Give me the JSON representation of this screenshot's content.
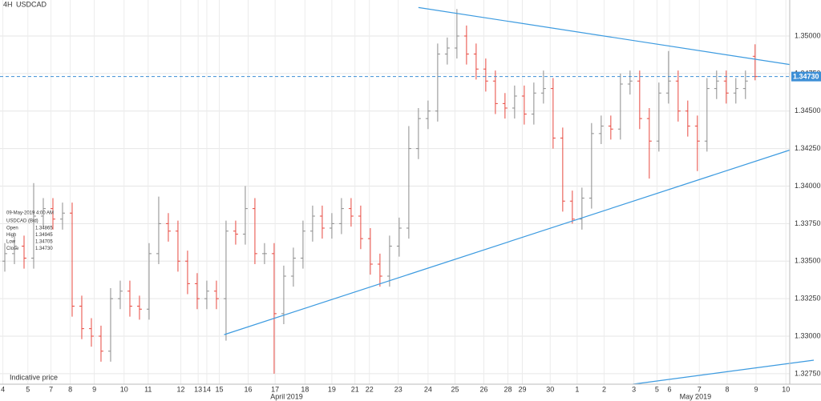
{
  "chart_data": {
    "type": "ohlc",
    "timeframe": "4H",
    "symbol": "USDCAD",
    "up_color": "#8c8c8c",
    "down_color": "#e8483f",
    "grid": true,
    "xlim": [
      0,
      82.1
    ],
    "ylim": [
      1.3268,
      1.3524
    ],
    "yticks": [
      {
        "value": 1.35,
        "label": "1.35000"
      },
      {
        "value": 1.3475,
        "label": "1.34750"
      },
      {
        "value": 1.345,
        "label": "1.34500"
      },
      {
        "value": 1.3425,
        "label": "1.34250"
      },
      {
        "value": 1.34,
        "label": "1.34000"
      },
      {
        "value": 1.3375,
        "label": "1.33750"
      },
      {
        "value": 1.335,
        "label": "1.33500"
      },
      {
        "value": 1.3325,
        "label": "1.33250"
      },
      {
        "value": 1.33,
        "label": "1.33000"
      },
      {
        "value": 1.3275,
        "label": "1.32750"
      }
    ],
    "xticks": [
      {
        "value": 0.3,
        "label": "4"
      },
      {
        "value": 2.9,
        "label": "5"
      },
      {
        "value": 5.3,
        "label": "7"
      },
      {
        "value": 7.3,
        "label": "8"
      },
      {
        "value": 9.8,
        "label": "9"
      },
      {
        "value": 12.9,
        "label": "10"
      },
      {
        "value": 15.4,
        "label": "11"
      },
      {
        "value": 18.8,
        "label": "12"
      },
      {
        "value": 20.6,
        "label": "13"
      },
      {
        "value": 21.5,
        "label": "14"
      },
      {
        "value": 22.8,
        "label": "15"
      },
      {
        "value": 25.8,
        "label": "16"
      },
      {
        "value": 28.6,
        "label": "17"
      },
      {
        "value": 31.7,
        "label": "18"
      },
      {
        "value": 34.5,
        "label": "19"
      },
      {
        "value": 36.9,
        "label": "21"
      },
      {
        "value": 38.4,
        "label": "22"
      },
      {
        "value": 41.4,
        "label": "23"
      },
      {
        "value": 44.5,
        "label": "24"
      },
      {
        "value": 47.3,
        "label": "25"
      },
      {
        "value": 50.3,
        "label": "26"
      },
      {
        "value": 52.8,
        "label": "28"
      },
      {
        "value": 54.3,
        "label": "29"
      },
      {
        "value": 57.2,
        "label": "30"
      },
      {
        "value": 60,
        "label": "1"
      },
      {
        "value": 62.8,
        "label": "2"
      },
      {
        "value": 65.9,
        "label": "3"
      },
      {
        "value": 68.3,
        "label": "5"
      },
      {
        "value": 69.6,
        "label": "6"
      },
      {
        "value": 72.7,
        "label": "7"
      },
      {
        "value": 75.6,
        "label": "8"
      },
      {
        "value": 78.6,
        "label": "9"
      },
      {
        "value": 81.7,
        "label": "10"
      }
    ],
    "month_ticks": [
      {
        "value": 29.8,
        "label": "April 2019"
      },
      {
        "value": 72.3,
        "label": "May 2019"
      }
    ],
    "current_price": {
      "value": 1.3473,
      "label": "1.34730",
      "color": "#3d8fd6"
    },
    "trendlines": [
      {
        "x": [
          43.5,
          82.1
        ],
        "y": [
          1.3519,
          1.3481
        ],
        "color": "#3d9be0"
      },
      {
        "x": [
          23.3,
          82.1
        ],
        "y": [
          1.3301,
          1.3424
        ],
        "color": "#3d9be0"
      },
      {
        "x": [
          65.8,
          84.6
        ],
        "y": [
          1.3268,
          1.3284
        ],
        "color": "#3d9be0"
      }
    ],
    "ohlc": [
      [
        1.335,
        1.3362,
        1.3343,
        1.3355
      ],
      [
        1.3355,
        1.3367,
        1.3348,
        1.336
      ],
      [
        1.336,
        1.3367,
        1.3345,
        1.3352
      ],
      [
        1.3352,
        1.3402,
        1.3345,
        1.338
      ],
      [
        1.338,
        1.3392,
        1.3373,
        1.3385
      ],
      [
        1.3385,
        1.3392,
        1.3371,
        1.3378
      ],
      [
        1.3378,
        1.3389,
        1.3371,
        1.3382
      ],
      [
        1.3382,
        1.3389,
        1.3313,
        1.332
      ],
      [
        1.332,
        1.3327,
        1.3298,
        1.3305
      ],
      [
        1.3305,
        1.3312,
        1.3293,
        1.33
      ],
      [
        1.33,
        1.3307,
        1.3283,
        1.329
      ],
      [
        1.329,
        1.3332,
        1.3283,
        1.3325
      ],
      [
        1.3325,
        1.3337,
        1.3318,
        1.333
      ],
      [
        1.333,
        1.3337,
        1.3313,
        1.332
      ],
      [
        1.332,
        1.3327,
        1.3311,
        1.3318
      ],
      [
        1.3318,
        1.3362,
        1.3311,
        1.3355
      ],
      [
        1.3355,
        1.3393,
        1.3348,
        1.3375
      ],
      [
        1.3375,
        1.3382,
        1.3363,
        1.337
      ],
      [
        1.337,
        1.3377,
        1.3343,
        1.335
      ],
      [
        1.335,
        1.3357,
        1.3328,
        1.3335
      ],
      [
        1.3335,
        1.3342,
        1.3318,
        1.3325
      ],
      [
        1.3325,
        1.3337,
        1.3318,
        1.333
      ],
      [
        1.333,
        1.3337,
        1.3318,
        1.3325
      ],
      [
        1.3325,
        1.3377,
        1.3297,
        1.337
      ],
      [
        1.337,
        1.3377,
        1.3361,
        1.3368
      ],
      [
        1.3368,
        1.34,
        1.3361,
        1.3385
      ],
      [
        1.3385,
        1.3392,
        1.3348,
        1.3355
      ],
      [
        1.3355,
        1.3362,
        1.3348,
        1.3355
      ],
      [
        1.3355,
        1.3362,
        1.3275,
        1.3315
      ],
      [
        1.3315,
        1.3347,
        1.3308,
        1.334
      ],
      [
        1.334,
        1.3359,
        1.3333,
        1.3352
      ],
      [
        1.3352,
        1.3377,
        1.3345,
        1.337
      ],
      [
        1.337,
        1.3387,
        1.3363,
        1.338
      ],
      [
        1.338,
        1.3387,
        1.3365,
        1.3372
      ],
      [
        1.3372,
        1.3382,
        1.3365,
        1.3375
      ],
      [
        1.3375,
        1.3392,
        1.3368,
        1.3385
      ],
      [
        1.3385,
        1.3392,
        1.3373,
        1.338
      ],
      [
        1.338,
        1.3387,
        1.3358,
        1.3365
      ],
      [
        1.3365,
        1.3372,
        1.3341,
        1.3348
      ],
      [
        1.3348,
        1.3355,
        1.3333,
        1.334
      ],
      [
        1.334,
        1.3367,
        1.3333,
        1.336
      ],
      [
        1.336,
        1.3379,
        1.3353,
        1.3372
      ],
      [
        1.3372,
        1.344,
        1.3365,
        1.3425
      ],
      [
        1.3425,
        1.3452,
        1.3418,
        1.3445
      ],
      [
        1.3445,
        1.3457,
        1.3438,
        1.345
      ],
      [
        1.345,
        1.3495,
        1.3443,
        1.3488
      ],
      [
        1.3488,
        1.3499,
        1.3481,
        1.3492
      ],
      [
        1.3492,
        1.3518,
        1.3485,
        1.35
      ],
      [
        1.35,
        1.3507,
        1.3481,
        1.3488
      ],
      [
        1.3488,
        1.3495,
        1.3471,
        1.3478
      ],
      [
        1.3478,
        1.3485,
        1.3463,
        1.347
      ],
      [
        1.347,
        1.3477,
        1.3448,
        1.3455
      ],
      [
        1.3455,
        1.3462,
        1.3445,
        1.3452
      ],
      [
        1.3452,
        1.3467,
        1.3445,
        1.346
      ],
      [
        1.346,
        1.3467,
        1.3441,
        1.3448
      ],
      [
        1.3448,
        1.3469,
        1.3441,
        1.3462
      ],
      [
        1.3462,
        1.3477,
        1.3455,
        1.3465
      ],
      [
        1.3465,
        1.3472,
        1.3425,
        1.3432
      ],
      [
        1.3432,
        1.3439,
        1.3383,
        1.339
      ],
      [
        1.339,
        1.3397,
        1.3375,
        1.3378
      ],
      [
        1.3378,
        1.3399,
        1.3371,
        1.3392
      ],
      [
        1.3392,
        1.3442,
        1.3385,
        1.3435
      ],
      [
        1.3435,
        1.3447,
        1.3428,
        1.344
      ],
      [
        1.344,
        1.3447,
        1.3431,
        1.3438
      ],
      [
        1.3438,
        1.3475,
        1.3431,
        1.3468
      ],
      [
        1.3468,
        1.3477,
        1.3461,
        1.347
      ],
      [
        1.347,
        1.3477,
        1.3438,
        1.3445
      ],
      [
        1.3445,
        1.3452,
        1.3405,
        1.343
      ],
      [
        1.343,
        1.3469,
        1.3423,
        1.3462
      ],
      [
        1.3462,
        1.349,
        1.3455,
        1.347
      ],
      [
        1.347,
        1.3477,
        1.3443,
        1.345
      ],
      [
        1.345,
        1.3457,
        1.3433,
        1.344
      ],
      [
        1.344,
        1.3447,
        1.341,
        1.343
      ],
      [
        1.343,
        1.3472,
        1.3423,
        1.3465
      ],
      [
        1.3465,
        1.3477,
        1.3458,
        1.347
      ],
      [
        1.347,
        1.3477,
        1.3455,
        1.3462
      ],
      [
        1.3462,
        1.3472,
        1.3455,
        1.3465
      ],
      [
        1.3465,
        1.3477,
        1.3458,
        1.347
      ],
      [
        1.34865,
        1.34945,
        1.34705,
        1.3473
      ]
    ],
    "info": {
      "time": "09-May-2019 4:00 AM",
      "instrument": "USDCAD (Bid)",
      "rows": [
        [
          "Open",
          "1.34865"
        ],
        [
          "High",
          "1.34945"
        ],
        [
          "Low",
          "1.34705"
        ],
        [
          "Close",
          "1.34730"
        ]
      ]
    },
    "footnote": "Indicative price"
  }
}
